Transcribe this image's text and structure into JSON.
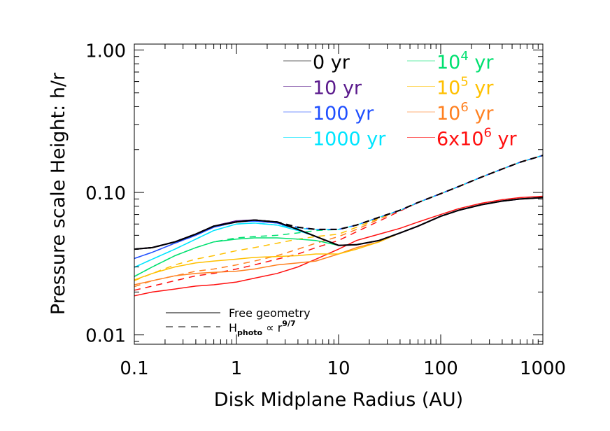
{
  "chart_data": {
    "type": "line",
    "xlabel": "Disk Midplane Radius (AU)",
    "ylabel": "Pressure scale Height: h/r",
    "xscale": "log",
    "yscale": "log",
    "xlim": [
      0.1,
      1000
    ],
    "ylim": [
      0.0086,
      1.1
    ],
    "xticks": [
      "0.1",
      "1",
      "10",
      "100",
      "1000"
    ],
    "xtick_values": [
      0.1,
      1,
      10,
      100,
      1000
    ],
    "yticks": [
      "0.01",
      "0.10",
      "1.00"
    ],
    "ytick_values": [
      0.01,
      0.1,
      1.0
    ],
    "grid": false,
    "legend_placement": "top-right",
    "x": [
      0.1,
      0.15,
      0.25,
      0.4,
      0.6,
      1,
      1.5,
      2.5,
      4,
      6,
      10,
      15,
      25,
      40,
      60,
      100,
      150,
      250,
      400,
      600,
      1000
    ],
    "series": [
      {
        "name": "0 yr",
        "label": "0 yr",
        "sup": "",
        "label_tail": "",
        "color": "#000000",
        "width": 2,
        "solid": [
          0.04,
          0.041,
          0.045,
          0.051,
          0.058,
          0.062,
          0.064,
          0.062,
          0.055,
          0.049,
          0.0425,
          0.043,
          0.046,
          0.052,
          0.058,
          0.068,
          0.075,
          0.082,
          0.087,
          0.09,
          0.092
        ],
        "dashed": [
          0.04,
          0.041,
          0.045,
          0.051,
          0.058,
          0.062,
          0.064,
          0.062,
          0.057,
          0.055,
          0.055,
          0.059,
          0.067,
          0.075,
          0.085,
          0.098,
          0.11,
          0.128,
          0.146,
          0.163,
          0.182
        ]
      },
      {
        "name": "10 yr",
        "label": "10 yr",
        "sup": "",
        "label_tail": "",
        "color": "#5a1a8c",
        "width": 2,
        "solid": [
          0.04,
          0.041,
          0.045,
          0.051,
          0.058,
          0.063,
          0.064,
          0.062,
          0.055,
          0.049,
          0.0425,
          0.043,
          0.046,
          0.052,
          0.058,
          0.068,
          0.075,
          0.082,
          0.087,
          0.09,
          0.092
        ],
        "dashed": [
          0.04,
          0.041,
          0.045,
          0.051,
          0.058,
          0.063,
          0.064,
          0.062,
          0.057,
          0.055,
          0.055,
          0.059,
          0.067,
          0.075,
          0.085,
          0.098,
          0.11,
          0.128,
          0.146,
          0.163,
          0.182
        ]
      },
      {
        "name": "100 yr",
        "label": "100 yr",
        "sup": "",
        "label_tail": "",
        "color": "#1f4fff",
        "width": 1.5,
        "solid": [
          0.0344,
          0.038,
          0.044,
          0.05,
          0.057,
          0.062,
          0.063,
          0.061,
          0.055,
          0.049,
          0.0425,
          0.043,
          0.046,
          0.052,
          0.058,
          0.068,
          0.075,
          0.082,
          0.087,
          0.09,
          0.092
        ],
        "dashed": [
          0.0344,
          0.038,
          0.044,
          0.05,
          0.057,
          0.062,
          0.063,
          0.061,
          0.057,
          0.055,
          0.055,
          0.059,
          0.067,
          0.075,
          0.085,
          0.098,
          0.11,
          0.128,
          0.146,
          0.163,
          0.182
        ]
      },
      {
        "name": "1000 yr",
        "label": "1000 yr",
        "sup": "",
        "label_tail": "",
        "color": "#00e5ff",
        "width": 1.5,
        "solid": [
          0.0298,
          0.034,
          0.04,
          0.047,
          0.054,
          0.06,
          0.061,
          0.059,
          0.054,
          0.049,
          0.0425,
          0.043,
          0.046,
          0.052,
          0.058,
          0.068,
          0.075,
          0.082,
          0.087,
          0.09,
          0.092
        ],
        "dashed": [
          0.0298,
          0.034,
          0.04,
          0.047,
          0.054,
          0.06,
          0.061,
          0.059,
          0.056,
          0.055,
          0.055,
          0.059,
          0.067,
          0.075,
          0.085,
          0.098,
          0.11,
          0.128,
          0.146,
          0.163,
          0.182
        ]
      },
      {
        "name": "10^4 yr",
        "label": "10",
        "sup": "4",
        "label_tail": " yr",
        "color": "#00e070",
        "width": 1.5,
        "solid": [
          0.0257,
          0.03,
          0.036,
          0.041,
          0.045,
          0.047,
          0.048,
          0.048,
          0.047,
          0.046,
          0.0425,
          0.043,
          0.046,
          0.052,
          0.058,
          0.068,
          0.075,
          0.082,
          0.087,
          0.09,
          0.092
        ],
        "dashed": [
          0.0257,
          0.03,
          0.036,
          0.041,
          0.045,
          0.048,
          0.049,
          0.05,
          0.052,
          0.054,
          0.055,
          0.059,
          0.067,
          0.075,
          0.085,
          0.098,
          0.11,
          0.128,
          0.146,
          0.163,
          0.182
        ]
      },
      {
        "name": "10^5 yr",
        "label": "10",
        "sup": "5",
        "label_tail": " yr",
        "color": "#ffc000",
        "width": 1.5,
        "solid": [
          0.0243,
          0.027,
          0.03,
          0.032,
          0.033,
          0.034,
          0.035,
          0.0355,
          0.036,
          0.037,
          0.037,
          0.04,
          0.045,
          0.052,
          0.058,
          0.068,
          0.075,
          0.082,
          0.087,
          0.09,
          0.092
        ],
        "dashed": [
          0.024,
          0.027,
          0.031,
          0.034,
          0.036,
          0.039,
          0.041,
          0.044,
          0.047,
          0.049,
          0.051,
          0.057,
          0.066,
          0.075,
          0.085,
          0.098,
          0.11,
          0.128,
          0.146,
          0.163,
          0.182
        ]
      },
      {
        "name": "10^6 yr",
        "label": "10",
        "sup": "6",
        "label_tail": " yr",
        "color": "#ff8020",
        "width": 1.5,
        "solid": [
          0.0225,
          0.024,
          0.026,
          0.027,
          0.0275,
          0.028,
          0.029,
          0.031,
          0.032,
          0.033,
          0.037,
          0.041,
          0.045,
          0.052,
          0.058,
          0.068,
          0.075,
          0.082,
          0.087,
          0.09,
          0.092
        ],
        "dashed": [
          0.0218,
          0.024,
          0.026,
          0.028,
          0.029,
          0.031,
          0.033,
          0.036,
          0.04,
          0.044,
          0.049,
          0.055,
          0.065,
          0.075,
          0.085,
          0.098,
          0.11,
          0.128,
          0.146,
          0.163,
          0.182
        ]
      },
      {
        "name": "6x10^6 yr",
        "label": "6x10",
        "sup": "6",
        "label_tail": " yr",
        "color": "#ff1010",
        "width": 1.5,
        "solid": [
          0.0188,
          0.02,
          0.021,
          0.022,
          0.0225,
          0.0235,
          0.025,
          0.027,
          0.03,
          0.034,
          0.04,
          0.046,
          0.051,
          0.056,
          0.062,
          0.07,
          0.077,
          0.084,
          0.089,
          0.092,
          0.094
        ],
        "dashed": [
          0.0206,
          0.022,
          0.024,
          0.026,
          0.027,
          0.029,
          0.031,
          0.034,
          0.037,
          0.041,
          0.046,
          0.053,
          0.063,
          0.074,
          0.085,
          0.098,
          0.11,
          0.128,
          0.146,
          0.163,
          0.182
        ]
      }
    ],
    "style_legend": {
      "solid_label": "Free geometry",
      "dashed_label_main": "H",
      "dashed_label_sub": "photo",
      "dashed_label_mid": " ∝ r",
      "dashed_label_sup": "9/7"
    }
  }
}
